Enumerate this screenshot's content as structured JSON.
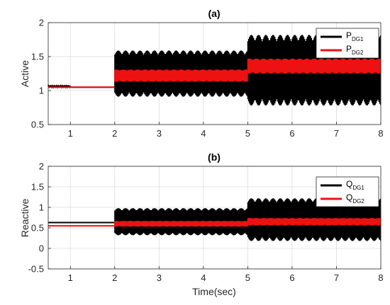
{
  "chart_data": [
    {
      "type": "line",
      "panel": "a",
      "title": "(a)",
      "xlabel": "",
      "ylabel": "Active",
      "xlim": [
        0.5,
        8
      ],
      "ylim": [
        0.5,
        2
      ],
      "xticks": [
        1,
        2,
        3,
        4,
        5,
        6,
        7,
        8
      ],
      "yticks": [
        0.5,
        1,
        1.5,
        2
      ],
      "grid": true,
      "legend_position": "top-right",
      "series": [
        {
          "name": "PDG1",
          "label_main": "P",
          "label_sub": "DG1",
          "color": "#000000",
          "segments": [
            {
              "x": [
                0.5,
                1.0
              ],
              "center": 1.06,
              "amplitude": 0.0,
              "ripple": 0.01
            },
            {
              "x": [
                1.0,
                2.0
              ],
              "center": 1.05,
              "amplitude": 0.0
            },
            {
              "x": [
                2.0,
                5.0
              ],
              "center": 1.25,
              "amplitude": 0.34
            },
            {
              "x": [
                5.0,
                8.0
              ],
              "center": 1.3,
              "amplitude": 0.52
            }
          ]
        },
        {
          "name": "PDG2",
          "label_main": "P",
          "label_sub": "DG2",
          "color": "#ee1111",
          "segments": [
            {
              "x": [
                0.5,
                2.0
              ],
              "center": 1.05,
              "amplitude": 0.0
            },
            {
              "x": [
                2.0,
                5.0
              ],
              "center": 1.22,
              "amplitude": 0.09
            },
            {
              "x": [
                5.0,
                8.0
              ],
              "center": 1.36,
              "amplitude": 0.11
            }
          ]
        }
      ]
    },
    {
      "type": "line",
      "panel": "b",
      "title": "(b)",
      "xlabel": "Time(sec)",
      "ylabel": "Reactive",
      "xlim": [
        0.5,
        8
      ],
      "ylim": [
        -0.5,
        2
      ],
      "xticks": [
        1,
        2,
        3,
        4,
        5,
        6,
        7,
        8
      ],
      "yticks": [
        -0.5,
        0,
        0.5,
        1,
        1.5,
        2
      ],
      "grid": true,
      "legend_position": "top-right",
      "series": [
        {
          "name": "QDG1",
          "label_main": "Q",
          "label_sub": "DG1",
          "color": "#000000",
          "segments": [
            {
              "x": [
                0.5,
                2.0
              ],
              "center": 0.63,
              "amplitude": 0.0
            },
            {
              "x": [
                2.0,
                5.0
              ],
              "center": 0.65,
              "amplitude": 0.33
            },
            {
              "x": [
                5.0,
                8.0
              ],
              "center": 0.7,
              "amplitude": 0.52
            }
          ]
        },
        {
          "name": "QDG2",
          "label_main": "Q",
          "label_sub": "DG2",
          "color": "#ee1111",
          "segments": [
            {
              "x": [
                0.5,
                2.0
              ],
              "center": 0.55,
              "amplitude": 0.0
            },
            {
              "x": [
                2.0,
                5.0
              ],
              "center": 0.6,
              "amplitude": 0.07
            },
            {
              "x": [
                5.0,
                8.0
              ],
              "center": 0.65,
              "amplitude": 0.09
            }
          ]
        }
      ]
    }
  ]
}
